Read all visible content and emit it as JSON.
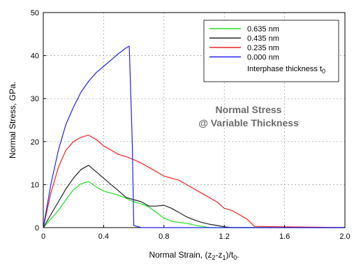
{
  "chart_data": {
    "type": "line",
    "xlabel": {
      "main": "Normal Strain, (z",
      "sub1": "2",
      "mid": "-z",
      "sub2": "1",
      "mid2": ")/t",
      "sub3": "0",
      "end": "."
    },
    "ylabel": "Normal Stress, GPa.",
    "xlim": [
      0,
      2.0
    ],
    "ylim": [
      0,
      50
    ],
    "x_ticks": [
      "0",
      "0.4",
      "0.8",
      "1.2",
      "1.6",
      "2.0"
    ],
    "y_ticks": [
      "0",
      "10",
      "20",
      "30",
      "40",
      "50"
    ],
    "grid": true,
    "legend_position": "top-right",
    "legend_title": {
      "main": "Interphase thickness t",
      "sub": "0"
    },
    "annotation": [
      "Normal Stress",
      "@ Variable Thickness"
    ],
    "series": [
      {
        "name": "0.635 nm",
        "color": "#22dd22",
        "x": [
          0,
          0.05,
          0.1,
          0.15,
          0.2,
          0.25,
          0.3,
          0.35,
          0.4,
          0.45,
          0.5,
          0.55,
          0.6,
          0.65,
          0.7,
          0.75,
          0.8,
          0.85,
          0.9,
          0.95,
          1.0,
          1.05,
          1.1,
          2.0
        ],
        "y": [
          0,
          2.0,
          4.0,
          6.5,
          8.8,
          10.2,
          10.7,
          9.5,
          8.5,
          8.0,
          7.5,
          6.8,
          6.0,
          5.5,
          4.8,
          3.5,
          2.2,
          1.5,
          1.2,
          1.0,
          0.6,
          0.3,
          0.0,
          0.0
        ]
      },
      {
        "name": "0.435 nm",
        "color": "#222222",
        "x": [
          0,
          0.05,
          0.1,
          0.15,
          0.2,
          0.25,
          0.3,
          0.35,
          0.4,
          0.45,
          0.5,
          0.55,
          0.6,
          0.65,
          0.7,
          0.75,
          0.8,
          0.85,
          0.9,
          0.95,
          1.0,
          1.05,
          1.1,
          1.15,
          1.2,
          1.25,
          2.0
        ],
        "y": [
          0,
          3.0,
          6.0,
          9.0,
          11.5,
          13.5,
          14.5,
          13.0,
          11.5,
          10.0,
          8.5,
          7.0,
          6.5,
          6.0,
          5.0,
          5.0,
          5.2,
          4.5,
          3.5,
          2.5,
          1.8,
          1.2,
          0.8,
          0.5,
          0.2,
          0.0,
          0.0
        ]
      },
      {
        "name": "0.235 nm",
        "color": "#ee2222",
        "x": [
          0,
          0.05,
          0.1,
          0.15,
          0.2,
          0.25,
          0.3,
          0.35,
          0.4,
          0.45,
          0.5,
          0.55,
          0.6,
          0.65,
          0.7,
          0.75,
          0.8,
          0.85,
          0.9,
          0.95,
          1.0,
          1.05,
          1.1,
          1.15,
          1.2,
          1.25,
          1.3,
          1.35,
          1.4,
          2.0
        ],
        "y": [
          0,
          8.0,
          14.0,
          18.0,
          20.0,
          21.0,
          21.5,
          20.5,
          19.0,
          18.0,
          17.0,
          16.5,
          15.8,
          15.0,
          14.0,
          13.0,
          12.0,
          11.5,
          11.0,
          10.0,
          9.0,
          8.0,
          7.0,
          6.0,
          4.5,
          4.0,
          3.0,
          2.0,
          0.3,
          0.0
        ]
      },
      {
        "name": "0.000 nm",
        "color": "#2222ee",
        "x": [
          0,
          0.05,
          0.1,
          0.15,
          0.2,
          0.25,
          0.3,
          0.35,
          0.4,
          0.45,
          0.5,
          0.55,
          0.57,
          0.59,
          0.6,
          0.65,
          2.0
        ],
        "y": [
          0,
          10.0,
          18.0,
          24.0,
          28.0,
          31.5,
          34.0,
          36.0,
          37.5,
          39.0,
          40.5,
          41.8,
          42.2,
          20.0,
          0.5,
          0.0,
          0.0
        ]
      }
    ]
  }
}
